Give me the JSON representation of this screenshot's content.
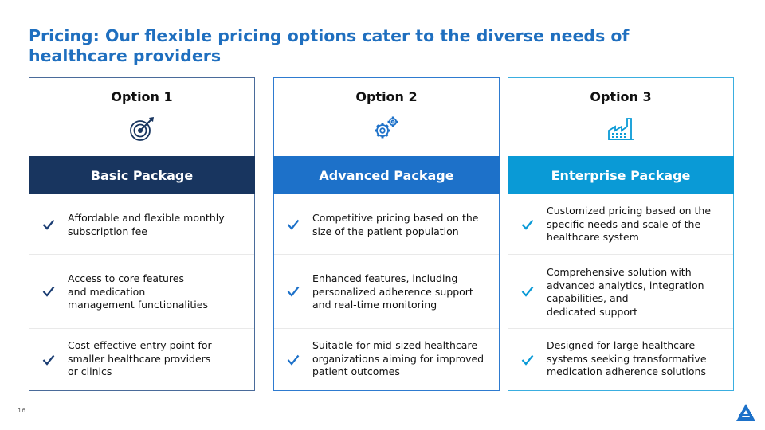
{
  "slide": {
    "title": "Pricing: Our flexible pricing options cater to the diverse needs of healthcare providers",
    "page_number": "16"
  },
  "colors": {
    "title": "#1f6fbf",
    "option1_band": "#18355f",
    "option2_band": "#1d71c9",
    "option3_band": "#0a9ad6",
    "check": "#1b3d73"
  },
  "options": [
    {
      "label": "Option 1",
      "icon": "target-icon",
      "package": "Basic Package",
      "features": [
        "Affordable and flexible monthly\nsubscription fee",
        "Access to core features\nand medication\nmanagement functionalities",
        "Cost-effective entry point for\nsmaller healthcare providers\nor clinics"
      ]
    },
    {
      "label": "Option 2",
      "icon": "gears-icon",
      "package": "Advanced Package",
      "features": [
        "Competitive pricing based on the\nsize of the patient population",
        "Enhanced features, including\npersonalized adherence support\nand real-time monitoring",
        "Suitable for mid-sized healthcare\norganizations aiming for improved\npatient outcomes"
      ]
    },
    {
      "label": "Option 3",
      "icon": "factory-icon",
      "package": "Enterprise Package",
      "features": [
        "Customized pricing based on the\nspecific needs and scale of the\nhealthcare system",
        "Comprehensive solution with\nadvanced analytics, integration\ncapabilities, and\ndedicated support",
        "Designed for large healthcare\nsystems seeking transformative\nmedication adherence solutions"
      ]
    }
  ]
}
